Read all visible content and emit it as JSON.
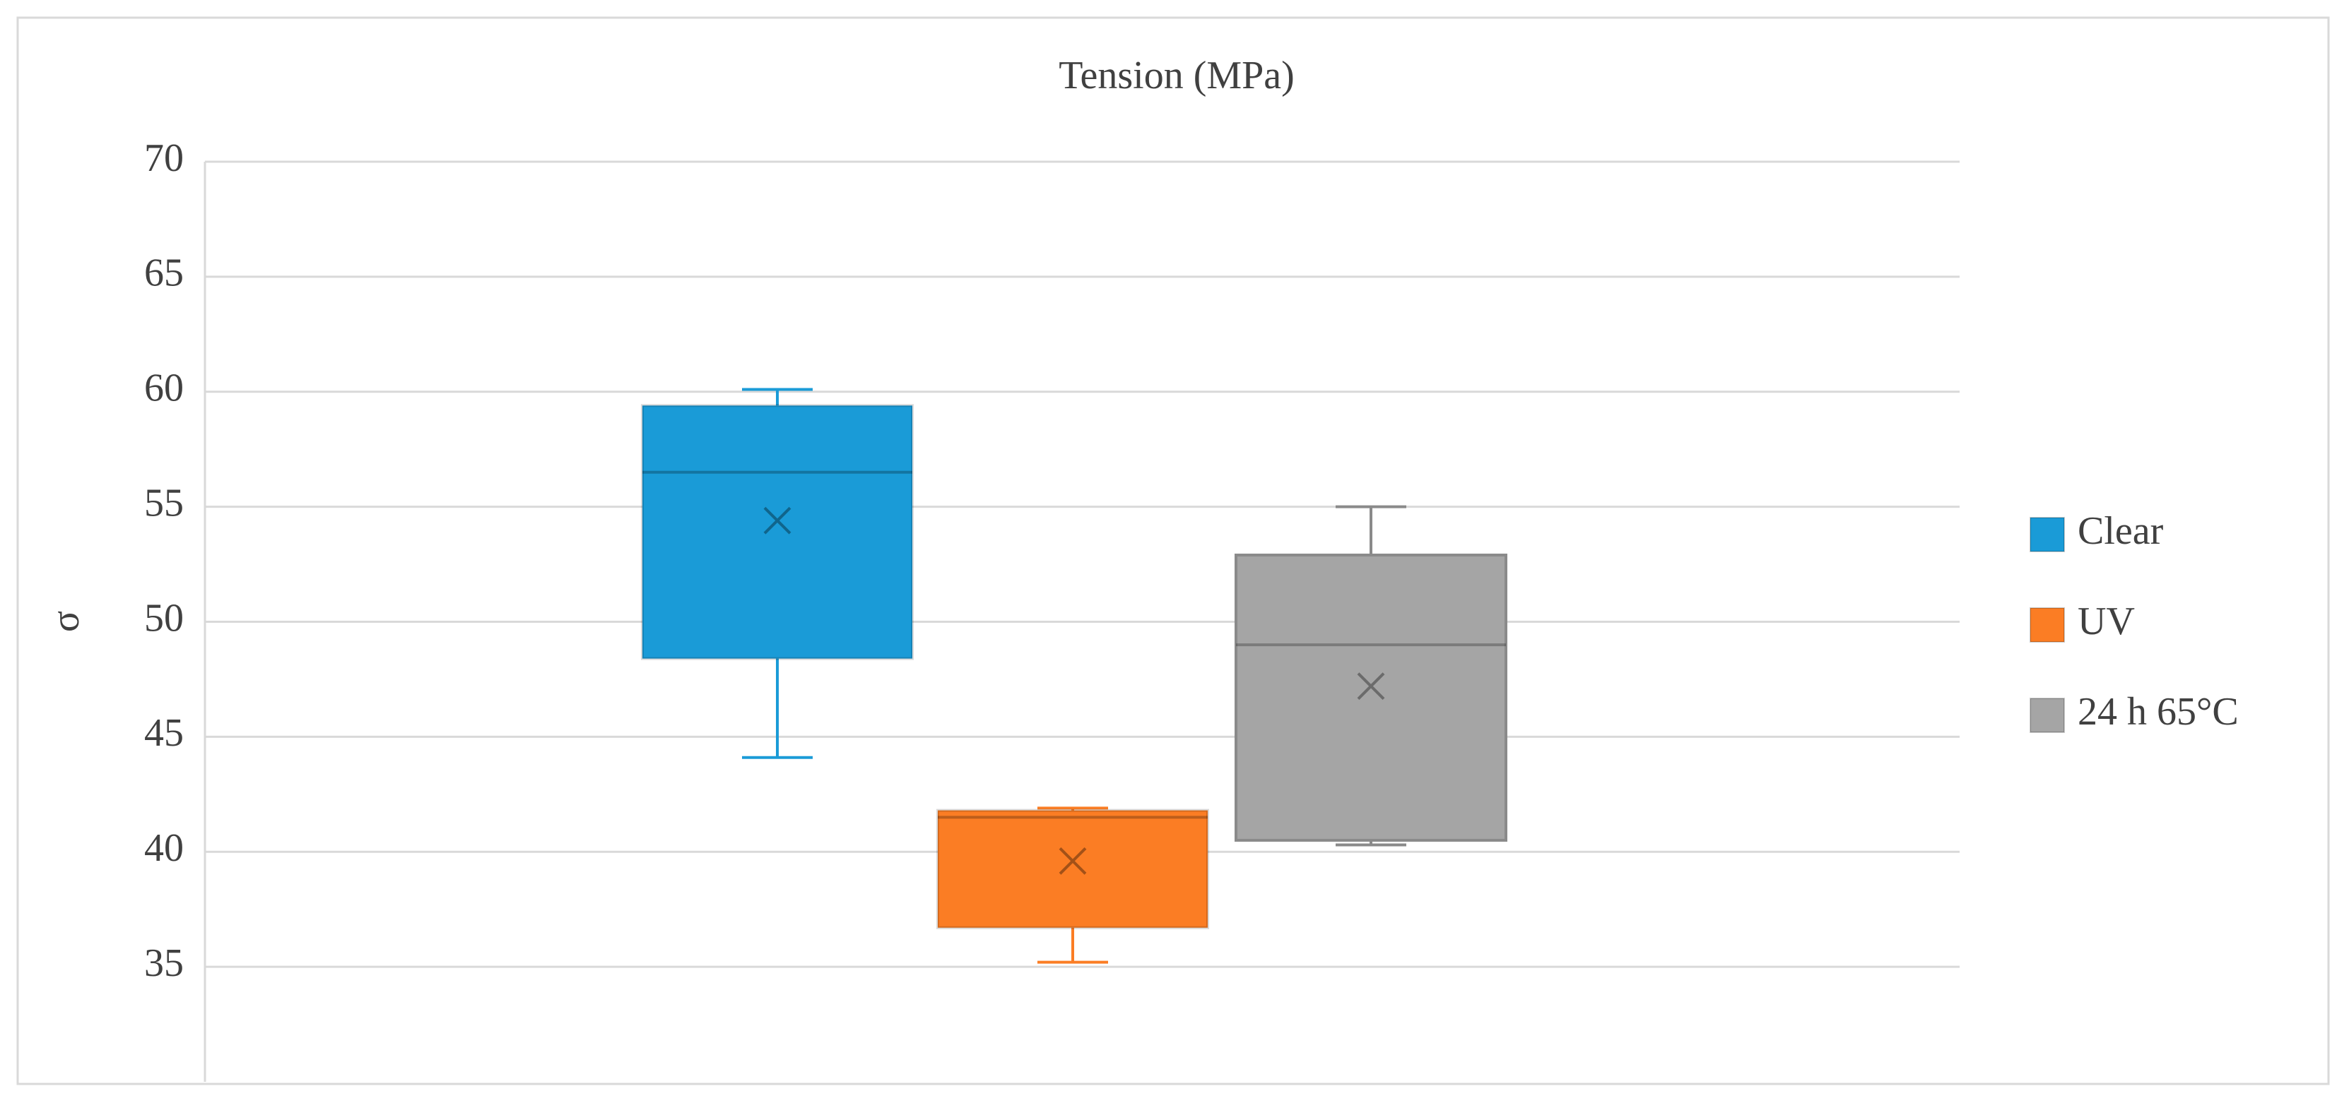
{
  "chart_data": {
    "type": "box",
    "title": "Tension (MPa)",
    "y_label": "σ",
    "ylim": [
      30,
      70
    ],
    "yticks": [
      35,
      40,
      45,
      50,
      55,
      60,
      65,
      70
    ],
    "grid": true,
    "legend": "right",
    "series": [
      {
        "name": "Clear",
        "color": "#1a9bd7",
        "min": 44.1,
        "q1": 48.4,
        "median": 56.5,
        "q3": 59.4,
        "max": 60.1,
        "mean": 54.4
      },
      {
        "name": "UV",
        "color": "#fb7d24",
        "min": 35.2,
        "q1": 36.7,
        "median": 41.5,
        "q3": 41.8,
        "max": 41.9,
        "mean": 39.6
      },
      {
        "name": "24 h 65°C",
        "color": "#a5a5a5",
        "min": 40.3,
        "q1": 40.5,
        "median": 49,
        "q3": 52.9,
        "max": 55,
        "mean": 47.2
      }
    ]
  }
}
